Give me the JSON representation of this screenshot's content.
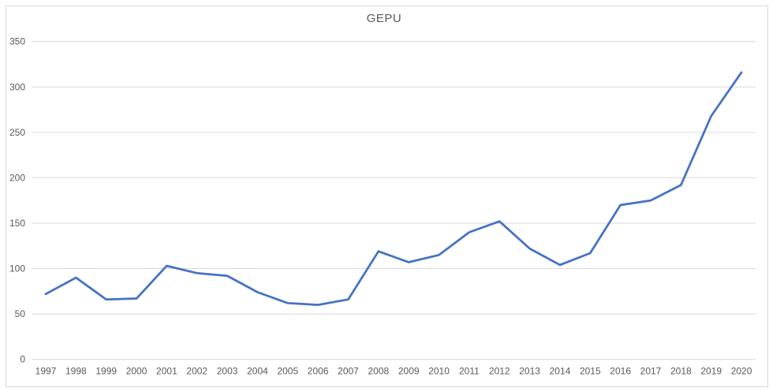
{
  "chart_data": {
    "type": "line",
    "title": "GEPU",
    "categories": [
      "1997",
      "1998",
      "1999",
      "2000",
      "2001",
      "2002",
      "2003",
      "2004",
      "2005",
      "2006",
      "2007",
      "2008",
      "2009",
      "2010",
      "2011",
      "2012",
      "2013",
      "2014",
      "2015",
      "2016",
      "2017",
      "2018",
      "2019",
      "2020"
    ],
    "series": [
      {
        "name": "GEPU",
        "color": "#4472C4",
        "values": [
          72,
          90,
          66,
          67,
          103,
          95,
          92,
          74,
          62,
          60,
          66,
          119,
          107,
          115,
          140,
          152,
          122,
          104,
          117,
          170,
          175,
          192,
          268,
          316
        ]
      }
    ],
    "xlabel": "",
    "ylabel": "",
    "ylim": [
      0,
      350
    ],
    "y_ticks": [
      350,
      300,
      250,
      200,
      150,
      100,
      50,
      0
    ],
    "grid": "horizontal",
    "legend": "none",
    "colors": {
      "line": "#4472C4",
      "grid": "#D9D9D9",
      "tick_text": "#595959",
      "title_text": "#595959",
      "border": "#D9D9D9",
      "background": "#FFFFFF"
    }
  }
}
